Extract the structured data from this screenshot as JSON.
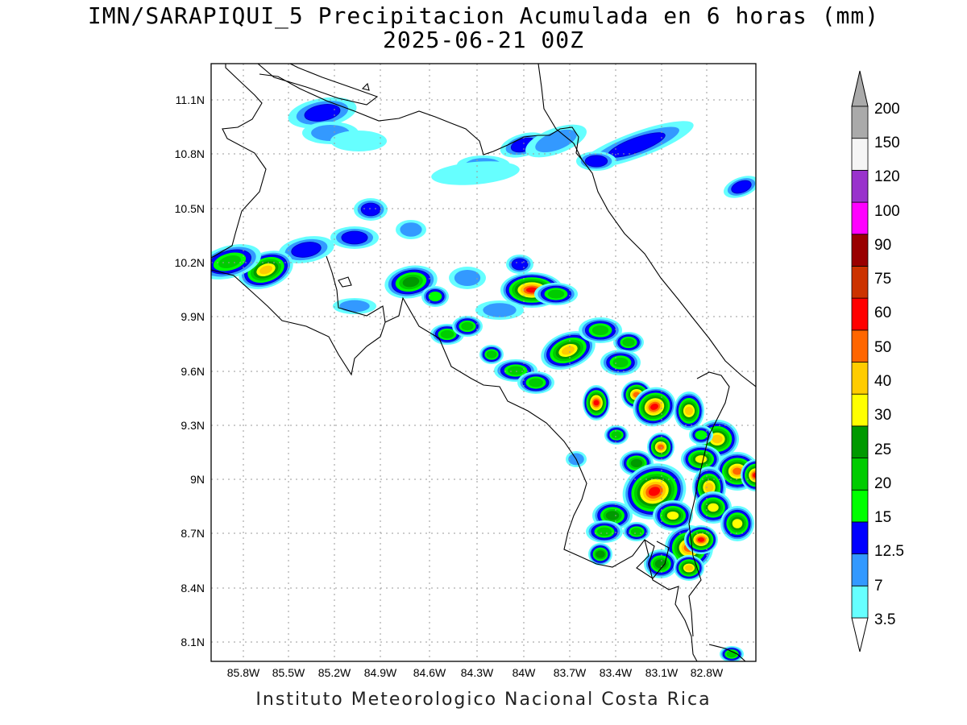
{
  "title": {
    "line1": "IMN/SARAPIQUI_5 Precipitacion Acumulada en 6 horas (mm)",
    "line2": "2025-06-21 00Z"
  },
  "credit": "Instituto Meteorologico Nacional Costa Rica",
  "map": {
    "lon_range": [
      -86.05,
      -82.48
    ],
    "lat_range": [
      8.0,
      11.3
    ],
    "lat_ticks": [
      "11.1N",
      "10.8N",
      "10.5N",
      "10.2N",
      "9.9N",
      "9.6N",
      "9.3N",
      "9N",
      "8.7N",
      "8.4N",
      "8.1N"
    ],
    "lon_ticks": [
      "85.8W",
      "85.5W",
      "85.2W",
      "84.9W",
      "84.6W",
      "84.3W",
      "84W",
      "83.7W",
      "83.4W",
      "83.1W",
      "82.8W"
    ],
    "grid": "dotted"
  },
  "colorbar": {
    "levels": [
      {
        "label": "3.5",
        "color": "#66ffff"
      },
      {
        "label": "7",
        "color": "#3399ff"
      },
      {
        "label": "12.5",
        "color": "#0000ff"
      },
      {
        "label": "15",
        "color": "#00ff00"
      },
      {
        "label": "20",
        "color": "#00cc00"
      },
      {
        "label": "25",
        "color": "#009900"
      },
      {
        "label": "30",
        "color": "#ffff00"
      },
      {
        "label": "40",
        "color": "#ffcc00"
      },
      {
        "label": "50",
        "color": "#ff6600"
      },
      {
        "label": "60",
        "color": "#ff0000"
      },
      {
        "label": "75",
        "color": "#cc3300"
      },
      {
        "label": "90",
        "color": "#990000"
      },
      {
        "label": "100",
        "color": "#ff00ff"
      },
      {
        "label": "120",
        "color": "#9933cc"
      },
      {
        "label": "150",
        "color": "#f5f5f5"
      },
      {
        "label": "200",
        "color": "#aaaaaa"
      }
    ]
  }
}
